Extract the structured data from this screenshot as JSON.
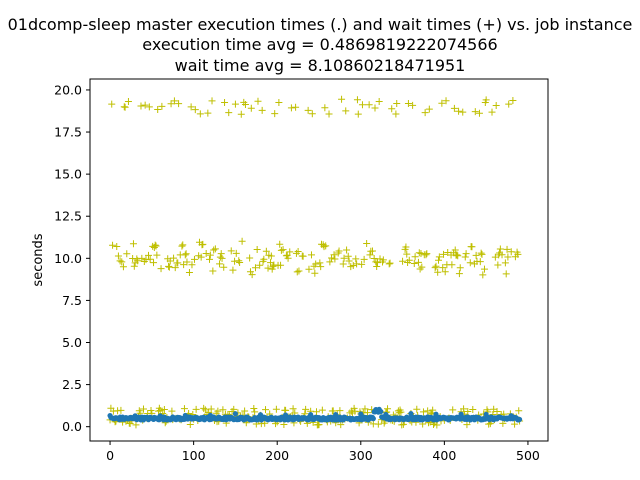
{
  "chart_data": {
    "type": "scatter",
    "title_lines": [
      "01dcomp-sleep master execution times (.) and wait times (+) vs. job instance",
      "execution time avg = 0.4869819222074566",
      "wait time avg = 8.10860218471951"
    ],
    "xlabel": "",
    "ylabel": "seconds",
    "xlim": [
      -24,
      524
    ],
    "ylim": [
      -0.85,
      20.65
    ],
    "xticks": [
      0,
      100,
      200,
      300,
      400,
      500
    ],
    "yticks": [
      0.0,
      2.5,
      5.0,
      7.5,
      10.0,
      12.5,
      15.0,
      17.5,
      20.0
    ],
    "ytick_labels": [
      "0.0",
      "2.5",
      "5.0",
      "7.5",
      "10.0",
      "12.5",
      "15.0",
      "17.5",
      "20.0"
    ],
    "grid": false,
    "legend": "none",
    "series": [
      {
        "marker": "dot",
        "color": "#1f77b4",
        "description_values": "execution times, one per job instance (0-490)",
        "x_count": 491,
        "y_pattern": {
          "base": 0.45,
          "amplitude_range": [
            0.32,
            0.98
          ]
        }
      },
      {
        "marker": "plus",
        "color": "#bfbf00",
        "description_values": "wait times, one per job instance (0-490)",
        "x_count": 491,
        "bands": [
          {
            "center": 19.0,
            "spread": 0.45,
            "period": 20
          },
          {
            "center": 10.0,
            "spread": 0.75,
            "period": 1
          },
          {
            "center": 0.5,
            "spread": 0.6,
            "period": 1
          }
        ]
      }
    ]
  }
}
